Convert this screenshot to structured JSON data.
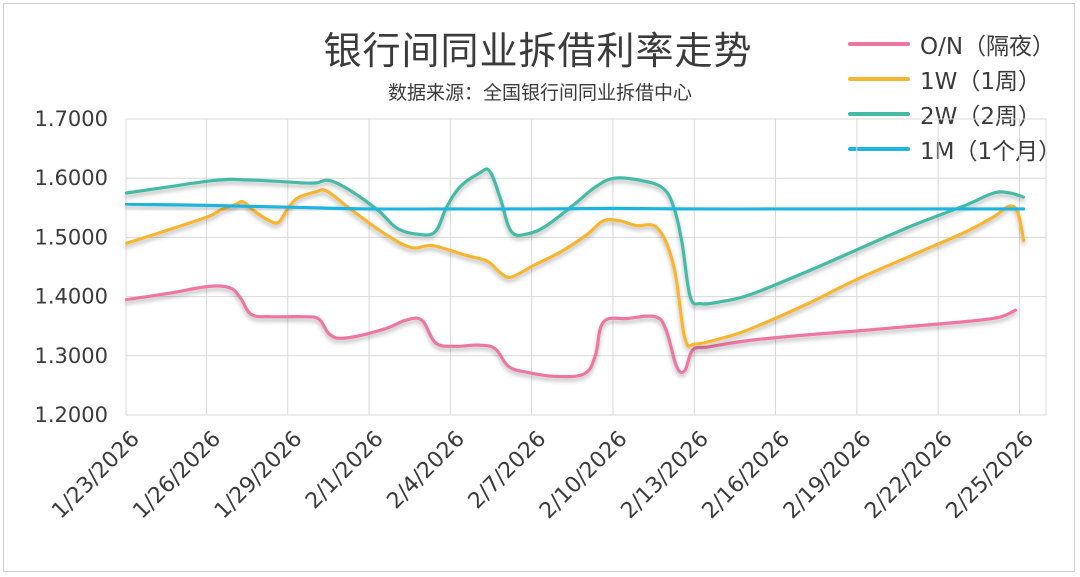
{
  "chart_data": {
    "type": "line",
    "title": "银行间同业拆借利率走势",
    "subtitle": "数据来源：全国银行间同业拆借中心",
    "ylim": [
      1.2,
      1.7
    ],
    "yticks": [
      "1.7000",
      "1.6000",
      "1.5000",
      "1.4000",
      "1.3000",
      "1.2000"
    ],
    "ytick_values": [
      1.7,
      1.6,
      1.5,
      1.4,
      1.3,
      1.2
    ],
    "x_dates": [
      "1/23/2026",
      "1/26/2026",
      "1/29/2026",
      "2/1/2026",
      "2/4/2026",
      "2/7/2026",
      "2/10/2026",
      "2/13/2026",
      "2/16/2026",
      "2/19/2026",
      "2/22/2026",
      "2/25/2026"
    ],
    "x_range_days": [
      0,
      33.5
    ],
    "grid": true,
    "legend_position": "top-right",
    "series": [
      {
        "name": "O/N（隔夜）",
        "color": "#ee77a2",
        "points": [
          [
            0,
            1.395
          ],
          [
            1.5,
            1.405
          ],
          [
            3,
            1.417
          ],
          [
            3.8,
            1.415
          ],
          [
            4.2,
            1.398
          ],
          [
            4.6,
            1.37
          ],
          [
            5.3,
            1.366
          ],
          [
            6.5,
            1.366
          ],
          [
            7.1,
            1.362
          ],
          [
            7.5,
            1.336
          ],
          [
            8.1,
            1.33
          ],
          [
            9.5,
            1.345
          ],
          [
            10.3,
            1.36
          ],
          [
            10.9,
            1.36
          ],
          [
            11.4,
            1.322
          ],
          [
            12.1,
            1.316
          ],
          [
            13,
            1.318
          ],
          [
            13.6,
            1.312
          ],
          [
            14.1,
            1.282
          ],
          [
            14.8,
            1.272
          ],
          [
            15.9,
            1.265
          ],
          [
            16.9,
            1.27
          ],
          [
            17.3,
            1.3
          ],
          [
            17.6,
            1.357
          ],
          [
            18.5,
            1.363
          ],
          [
            19.5,
            1.366
          ],
          [
            19.9,
            1.345
          ],
          [
            20.3,
            1.282
          ],
          [
            20.6,
            1.275
          ],
          [
            20.9,
            1.31
          ],
          [
            21.5,
            1.315
          ],
          [
            23,
            1.326
          ],
          [
            25,
            1.335
          ],
          [
            27,
            1.342
          ],
          [
            29,
            1.35
          ],
          [
            31,
            1.358
          ],
          [
            32.2,
            1.365
          ],
          [
            32.8,
            1.377
          ]
        ]
      },
      {
        "name": "1W（1周）",
        "color": "#f7b530",
        "points": [
          [
            0,
            1.49
          ],
          [
            1.5,
            1.512
          ],
          [
            3,
            1.535
          ],
          [
            3.5,
            1.547
          ],
          [
            4,
            1.555
          ],
          [
            4.3,
            1.56
          ],
          [
            4.7,
            1.545
          ],
          [
            5.2,
            1.53
          ],
          [
            5.6,
            1.525
          ],
          [
            5.9,
            1.545
          ],
          [
            6.3,
            1.566
          ],
          [
            7,
            1.577
          ],
          [
            7.4,
            1.578
          ],
          [
            8.2,
            1.55
          ],
          [
            9.5,
            1.507
          ],
          [
            10.5,
            1.483
          ],
          [
            11.3,
            1.486
          ],
          [
            12.5,
            1.47
          ],
          [
            13.3,
            1.46
          ],
          [
            13.8,
            1.44
          ],
          [
            14.2,
            1.433
          ],
          [
            15,
            1.452
          ],
          [
            16,
            1.475
          ],
          [
            17,
            1.505
          ],
          [
            17.6,
            1.528
          ],
          [
            18.2,
            1.528
          ],
          [
            18.8,
            1.52
          ],
          [
            19.6,
            1.515
          ],
          [
            20.2,
            1.45
          ],
          [
            20.6,
            1.33
          ],
          [
            21,
            1.32
          ],
          [
            22,
            1.33
          ],
          [
            23,
            1.345
          ],
          [
            25,
            1.385
          ],
          [
            27,
            1.43
          ],
          [
            29,
            1.47
          ],
          [
            31,
            1.51
          ],
          [
            32,
            1.535
          ],
          [
            32.6,
            1.553
          ],
          [
            32.9,
            1.54
          ],
          [
            33.1,
            1.495
          ]
        ]
      },
      {
        "name": "2W（2周）",
        "color": "#45bba7",
        "points": [
          [
            0,
            1.575
          ],
          [
            1.5,
            1.585
          ],
          [
            3,
            1.595
          ],
          [
            3.8,
            1.598
          ],
          [
            4.5,
            1.597
          ],
          [
            5.5,
            1.595
          ],
          [
            6.5,
            1.592
          ],
          [
            7,
            1.592
          ],
          [
            7.5,
            1.596
          ],
          [
            8.3,
            1.578
          ],
          [
            9.3,
            1.545
          ],
          [
            10,
            1.515
          ],
          [
            10.8,
            1.505
          ],
          [
            11.4,
            1.51
          ],
          [
            11.8,
            1.55
          ],
          [
            12.3,
            1.585
          ],
          [
            13,
            1.608
          ],
          [
            13.4,
            1.612
          ],
          [
            13.8,
            1.565
          ],
          [
            14.2,
            1.51
          ],
          [
            14.8,
            1.506
          ],
          [
            15.5,
            1.52
          ],
          [
            16.5,
            1.555
          ],
          [
            17.3,
            1.585
          ],
          [
            18,
            1.6
          ],
          [
            19,
            1.596
          ],
          [
            19.8,
            1.583
          ],
          [
            20.2,
            1.55
          ],
          [
            20.5,
            1.49
          ],
          [
            20.8,
            1.4
          ],
          [
            21.2,
            1.388
          ],
          [
            22,
            1.392
          ],
          [
            23,
            1.403
          ],
          [
            25,
            1.44
          ],
          [
            27,
            1.48
          ],
          [
            29,
            1.52
          ],
          [
            31,
            1.555
          ],
          [
            32,
            1.575
          ],
          [
            32.6,
            1.575
          ],
          [
            33.1,
            1.568
          ]
        ]
      },
      {
        "name": "1M（1个月）",
        "color": "#1fb5e0",
        "points": [
          [
            0,
            1.556
          ],
          [
            3,
            1.554
          ],
          [
            6,
            1.551
          ],
          [
            9,
            1.548
          ],
          [
            12,
            1.548
          ],
          [
            15,
            1.548
          ],
          [
            18,
            1.549
          ],
          [
            21,
            1.548
          ],
          [
            24,
            1.548
          ],
          [
            27,
            1.548
          ],
          [
            30,
            1.548
          ],
          [
            33.1,
            1.548
          ]
        ]
      }
    ]
  }
}
